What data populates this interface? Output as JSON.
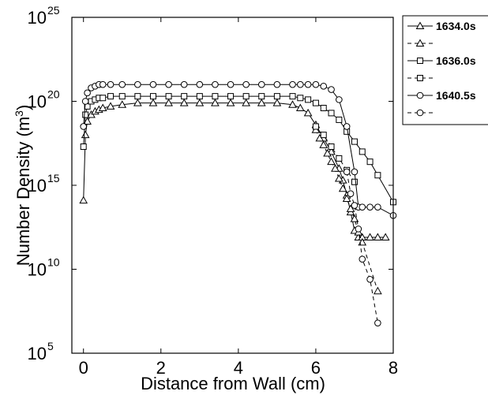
{
  "chart_data": {
    "type": "line",
    "xlabel": "Distance from Wall (cm)",
    "ylabel_main": "Number Density (m",
    "ylabel_sup": "3",
    "ylabel_tail": ")",
    "xlim": [
      -0.3,
      8
    ],
    "ylim_log10": [
      5,
      25
    ],
    "y_scale": "log",
    "x_ticks": [
      0,
      2,
      4,
      6,
      8
    ],
    "y_ticks": [
      {
        "base": "10",
        "exp": "5",
        "log": 5
      },
      {
        "base": "10",
        "exp": "10",
        "log": 10
      },
      {
        "base": "10",
        "exp": "15",
        "log": 15
      },
      {
        "base": "10",
        "exp": "20",
        "log": 20
      },
      {
        "base": "10",
        "exp": "25",
        "log": 25
      }
    ],
    "grid": false,
    "legend_position": "right-outside-top",
    "series": [
      {
        "name": "1634.0s",
        "marker": "triangle",
        "dash": "solid",
        "x": [
          0.0,
          0.05,
          0.1,
          0.2,
          0.3,
          0.4,
          0.5,
          0.7,
          1.0,
          1.4,
          1.8,
          2.2,
          2.6,
          3.0,
          3.4,
          3.8,
          4.2,
          4.6,
          5.0,
          5.4,
          5.6,
          5.8,
          6.0,
          6.2,
          6.4,
          6.6,
          6.7,
          6.8,
          6.9,
          7.0,
          7.1,
          7.2,
          7.4,
          7.6,
          7.8
        ],
        "y_log10": [
          14.1,
          18.0,
          18.8,
          19.2,
          19.4,
          19.5,
          19.6,
          19.7,
          19.8,
          19.9,
          19.9,
          19.9,
          19.9,
          19.9,
          19.9,
          19.9,
          19.9,
          19.9,
          19.9,
          19.8,
          19.6,
          19.3,
          18.6,
          17.8,
          17.0,
          16.0,
          15.3,
          14.4,
          13.4,
          12.3,
          11.9,
          11.9,
          11.9,
          11.9,
          11.9
        ]
      },
      {
        "name": "",
        "marker": "triangle",
        "dash": "dashed",
        "x": [
          6.0,
          6.1,
          6.2,
          6.3,
          6.4,
          6.5,
          6.6,
          6.7,
          6.8,
          6.9,
          7.0,
          7.1,
          7.2,
          7.6
        ],
        "y_log10": [
          18.3,
          17.8,
          17.4,
          16.9,
          16.4,
          16.0,
          15.4,
          14.8,
          14.2,
          13.6,
          13.0,
          12.2,
          11.6,
          8.7
        ]
      },
      {
        "name": "1636.0s",
        "marker": "square",
        "dash": "solid",
        "x": [
          0.0,
          0.05,
          0.1,
          0.2,
          0.3,
          0.4,
          0.5,
          0.7,
          1.0,
          1.4,
          1.8,
          2.2,
          2.6,
          3.0,
          3.4,
          3.8,
          4.2,
          4.6,
          5.0,
          5.4,
          5.6,
          5.8,
          6.0,
          6.2,
          6.4,
          6.6,
          6.8,
          7.0,
          7.2,
          7.4,
          7.6,
          8.0
        ],
        "y_log10": [
          17.3,
          19.2,
          19.7,
          20.0,
          20.1,
          20.2,
          20.2,
          20.3,
          20.3,
          20.3,
          20.3,
          20.3,
          20.3,
          20.3,
          20.3,
          20.3,
          20.3,
          20.3,
          20.3,
          20.3,
          20.2,
          20.1,
          19.9,
          19.6,
          19.3,
          18.9,
          18.2,
          17.6,
          17.0,
          16.4,
          15.6,
          14.0
        ]
      },
      {
        "name": "",
        "marker": "square",
        "dash": "dashed",
        "x": [
          6.0,
          6.2,
          6.4,
          6.6,
          6.8,
          7.0
        ],
        "y_log10": [
          18.5,
          18.0,
          17.3,
          16.6,
          15.9,
          15.2
        ]
      },
      {
        "name": "1640.5s",
        "marker": "circle",
        "dash": "solid",
        "x": [
          0.0,
          0.05,
          0.1,
          0.2,
          0.3,
          0.4,
          0.5,
          0.7,
          1.0,
          1.4,
          1.8,
          2.2,
          2.6,
          3.0,
          3.4,
          3.8,
          4.2,
          4.6,
          5.0,
          5.4,
          5.6,
          5.8,
          6.0,
          6.2,
          6.4,
          6.6,
          6.8,
          7.0,
          7.1,
          7.2,
          7.4,
          7.6,
          8.0
        ],
        "y_log10": [
          18.5,
          20.0,
          20.5,
          20.8,
          20.9,
          21.0,
          21.0,
          21.0,
          21.0,
          21.0,
          21.0,
          21.0,
          21.0,
          21.0,
          21.0,
          21.0,
          21.0,
          21.0,
          21.0,
          21.0,
          21.0,
          21.0,
          21.0,
          20.9,
          20.7,
          20.1,
          18.5,
          15.8,
          13.7,
          13.7,
          13.7,
          13.7,
          13.2
        ]
      },
      {
        "name": "",
        "marker": "circle",
        "dash": "dashed",
        "x": [
          6.8,
          6.9,
          7.0,
          7.1,
          7.2,
          7.4,
          7.6
        ],
        "y_log10": [
          15.8,
          14.5,
          13.8,
          12.4,
          10.6,
          9.4,
          6.8
        ]
      }
    ],
    "legend": [
      {
        "label": "1634.0s",
        "marker": "triangle",
        "dash": "solid"
      },
      {
        "label": "",
        "marker": "triangle",
        "dash": "dashed"
      },
      {
        "label": "1636.0s",
        "marker": "square",
        "dash": "solid"
      },
      {
        "label": "",
        "marker": "square",
        "dash": "dashed"
      },
      {
        "label": "1640.5s",
        "marker": "circle",
        "dash": "solid"
      },
      {
        "label": "",
        "marker": "circle",
        "dash": "dashed"
      }
    ],
    "colors": {
      "line": "#000000",
      "marker_fill": "#ffffff",
      "background": "#ffffff"
    }
  }
}
